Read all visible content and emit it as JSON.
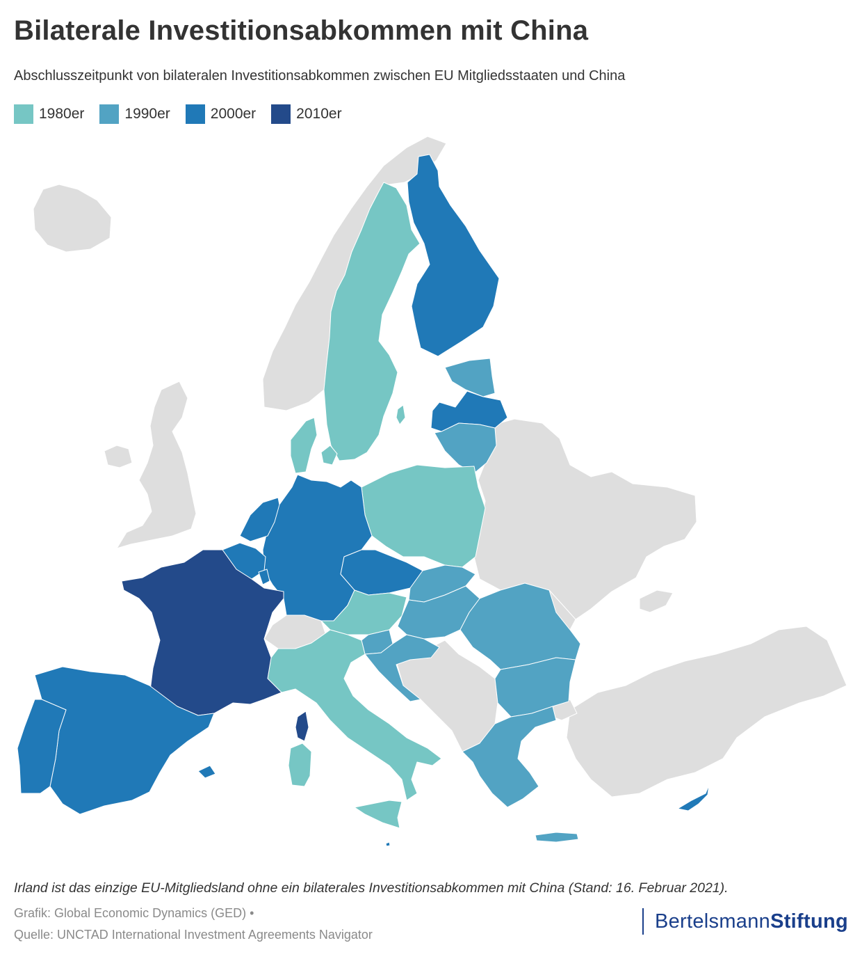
{
  "title": "Bilaterale Investitionsabkommen mit China",
  "subtitle": "Abschlusszeitpunkt von bilateralen Investitionsabkommen zwischen EU Mitgliedsstaaten und  China",
  "legend": [
    {
      "label": "1980er",
      "color": "#76c6c4"
    },
    {
      "label": "1990er",
      "color": "#52a3c3"
    },
    {
      "label": "2000er",
      "color": "#2079b7"
    },
    {
      "label": "2010er",
      "color": "#234a8a"
    }
  ],
  "non_eu_color": "#dedede",
  "map": {
    "countries": [
      {
        "name": "Sweden",
        "decade": "1980er"
      },
      {
        "name": "Denmark",
        "decade": "1980er"
      },
      {
        "name": "Poland",
        "decade": "1980er"
      },
      {
        "name": "Austria",
        "decade": "1980er"
      },
      {
        "name": "Italy",
        "decade": "1980er"
      },
      {
        "name": "Estonia",
        "decade": "1990er"
      },
      {
        "name": "Lithuania",
        "decade": "1990er"
      },
      {
        "name": "Slovakia",
        "decade": "1990er"
      },
      {
        "name": "Hungary",
        "decade": "1990er"
      },
      {
        "name": "Slovenia",
        "decade": "1990er"
      },
      {
        "name": "Croatia",
        "decade": "1990er"
      },
      {
        "name": "Romania",
        "decade": "1990er"
      },
      {
        "name": "Bulgaria",
        "decade": "1990er"
      },
      {
        "name": "Greece",
        "decade": "1990er"
      },
      {
        "name": "Finland",
        "decade": "2000er"
      },
      {
        "name": "Latvia",
        "decade": "2000er"
      },
      {
        "name": "Germany",
        "decade": "2000er"
      },
      {
        "name": "Netherlands",
        "decade": "2000er"
      },
      {
        "name": "Belgium",
        "decade": "2000er"
      },
      {
        "name": "Luxembourg",
        "decade": "2000er"
      },
      {
        "name": "Czechia",
        "decade": "2000er"
      },
      {
        "name": "Spain",
        "decade": "2000er"
      },
      {
        "name": "Portugal",
        "decade": "2000er"
      },
      {
        "name": "Malta",
        "decade": "2000er"
      },
      {
        "name": "Cyprus",
        "decade": "2000er"
      },
      {
        "name": "France",
        "decade": "2010er"
      }
    ]
  },
  "note": "Irland ist das einzige EU-Mitgliedsland ohne ein bilaterales Investitionsabkommen mit China (Stand: 16. Februar 2021).",
  "credits": {
    "line1": "Grafik: Global Economic Dynamics (GED) •",
    "line2": "Quelle: UNCTAD International Investment Agreements Navigator"
  },
  "brand": {
    "part1": "Bertelsmann",
    "part2": "Stiftung"
  }
}
